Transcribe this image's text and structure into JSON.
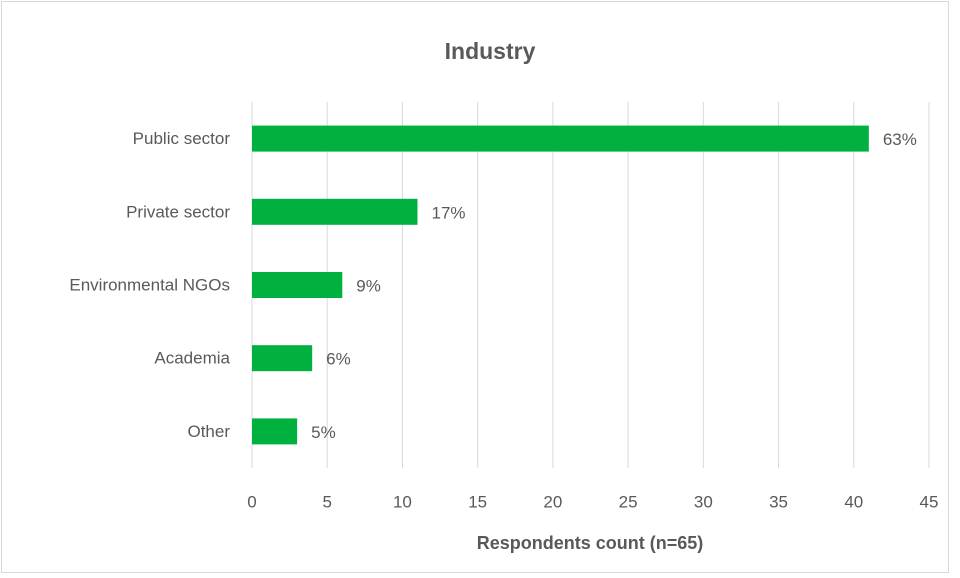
{
  "chart_data": {
    "type": "bar",
    "orientation": "horizontal",
    "title": "Industry",
    "x_label": "Respondents count (n=65)",
    "categories": [
      "Public sector",
      "Private sector",
      "Environmental NGOs",
      "Academia",
      "Other"
    ],
    "values": [
      41,
      11,
      6,
      4,
      3
    ],
    "value_labels": [
      "63%",
      "17%",
      "9%",
      "6%",
      "5%"
    ],
    "color": "#00b140",
    "xlim": [
      0,
      45
    ],
    "xticks": [
      0,
      5,
      10,
      15,
      20,
      25,
      30,
      35,
      40,
      45
    ],
    "grid": true
  }
}
